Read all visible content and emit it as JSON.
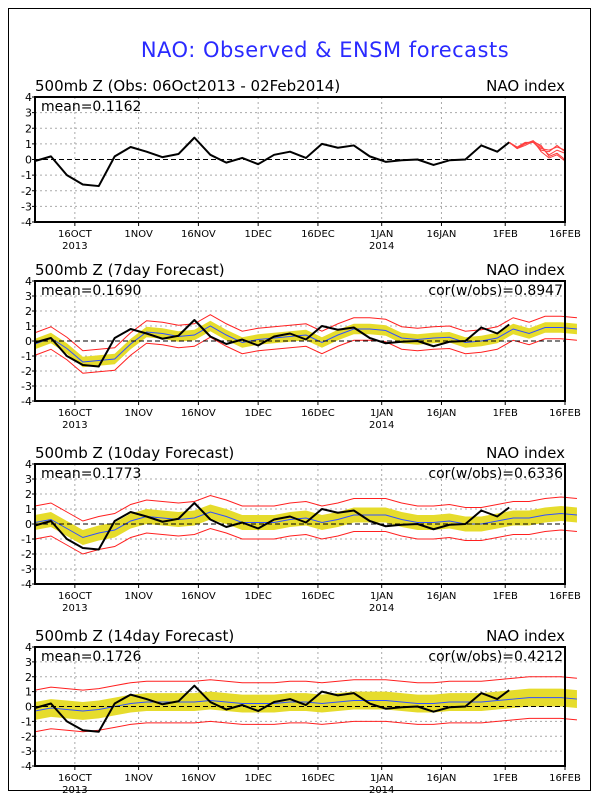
{
  "title": "NAO: Observed & ENSM forecasts",
  "colors": {
    "title": "#2a2aff",
    "observed": "#000000",
    "ensemble_mean": "#3050ff",
    "spread_shade": "#e6dc2c",
    "envelope": "#ff2020",
    "members": "#ff4040"
  },
  "chart_data": [
    {
      "type": "line",
      "title": "500mb Z (Obs: 06Oct2013 - 02Feb2014)",
      "right_title": "NAO index",
      "mean_label": "mean=0.1162",
      "cor_label": "",
      "ylim": [
        -4,
        4
      ],
      "yticks": [
        -4,
        -3,
        -2,
        -1,
        0,
        1,
        2,
        3,
        4
      ],
      "xlim": [
        "2013-10-06",
        "2014-02-16"
      ],
      "xticks": [
        {
          "date": "2013-10-16",
          "label": "16OCT",
          "sub": "2013"
        },
        {
          "date": "2013-11-01",
          "label": "1NOV",
          "sub": ""
        },
        {
          "date": "2013-11-16",
          "label": "16NOV",
          "sub": ""
        },
        {
          "date": "2013-12-01",
          "label": "1DEC",
          "sub": ""
        },
        {
          "date": "2013-12-16",
          "label": "16DEC",
          "sub": ""
        },
        {
          "date": "2014-01-01",
          "label": "1JAN",
          "sub": "2014"
        },
        {
          "date": "2014-01-16",
          "label": "16JAN",
          "sub": ""
        },
        {
          "date": "2014-02-01",
          "label": "1FEB",
          "sub": ""
        },
        {
          "date": "2014-02-16",
          "label": "16FEB",
          "sub": ""
        }
      ],
      "grid": true,
      "series_kind": "observed_with_members",
      "members": {
        "dates": [
          "2014-02-02",
          "2014-02-04",
          "2014-02-06",
          "2014-02-08",
          "2014-02-10",
          "2014-02-12",
          "2014-02-14",
          "2014-02-16"
        ],
        "values": [
          [
            1.1,
            0.7,
            1.0,
            1.2,
            0.8,
            0.3,
            0.6,
            0.4
          ],
          [
            1.1,
            0.8,
            1.1,
            1.1,
            0.6,
            0.5,
            0.9,
            0.5
          ],
          [
            1.1,
            0.7,
            0.9,
            1.15,
            0.9,
            0.2,
            0.4,
            0.0
          ],
          [
            1.1,
            0.75,
            1.05,
            1.1,
            0.7,
            0.6,
            0.8,
            0.6
          ],
          [
            1.1,
            0.7,
            1.0,
            1.2,
            0.5,
            0.1,
            0.3,
            -0.1
          ]
        ]
      }
    },
    {
      "type": "line",
      "title": "500mb Z (7day Forecast)",
      "right_title": "NAO index",
      "mean_label": "mean=0.1690",
      "cor_label": "cor(w/obs)=0.8947",
      "ylim": [
        -4,
        4
      ],
      "series_kind": "forecast",
      "ensemble_mean": [
        -0.2,
        0.2,
        -0.5,
        -1.4,
        -1.3,
        -1.2,
        -0.2,
        0.6,
        0.5,
        0.3,
        0.4,
        1.0,
        0.4,
        -0.1,
        0.1,
        0.2,
        0.3,
        0.4,
        -0.1,
        0.4,
        0.8,
        0.8,
        0.7,
        0.2,
        0.1,
        0.2,
        0.25,
        -0.1,
        0.0,
        0.2,
        0.8,
        0.5,
        0.9,
        0.9,
        0.8
      ],
      "shade_halfwidth": 0.35,
      "envelope_halfwidth": 0.75
    },
    {
      "type": "line",
      "title": "500mb Z (10day Forecast)",
      "right_title": "NAO index",
      "mean_label": "mean=0.1773",
      "cor_label": "cor(w/obs)=0.6336",
      "ylim": [
        -4,
        4
      ],
      "series_kind": "forecast",
      "ensemble_mean": [
        0.1,
        0.3,
        -0.3,
        -0.9,
        -0.6,
        -0.4,
        0.2,
        0.5,
        0.4,
        0.3,
        0.4,
        0.8,
        0.5,
        0.1,
        0.1,
        0.1,
        0.3,
        0.4,
        0.1,
        0.3,
        0.6,
        0.6,
        0.6,
        0.3,
        0.1,
        0.1,
        0.2,
        0.0,
        0.0,
        0.2,
        0.4,
        0.4,
        0.6,
        0.7,
        0.6
      ],
      "shade_halfwidth": 0.5,
      "envelope_halfwidth": 1.1
    },
    {
      "type": "line",
      "title": "500mb Z (14day Forecast)",
      "right_title": "NAO index",
      "mean_label": "mean=0.1726",
      "cor_label": "cor(w/obs)=0.4212",
      "ylim": [
        -4,
        4
      ],
      "series_kind": "forecast",
      "ensemble_mean": [
        -0.3,
        -0.1,
        -0.2,
        -0.3,
        -0.2,
        0.0,
        0.2,
        0.3,
        0.3,
        0.3,
        0.3,
        0.4,
        0.3,
        0.2,
        0.2,
        0.2,
        0.3,
        0.3,
        0.2,
        0.3,
        0.4,
        0.4,
        0.4,
        0.3,
        0.2,
        0.2,
        0.3,
        0.3,
        0.3,
        0.4,
        0.5,
        0.6,
        0.6,
        0.6,
        0.5
      ],
      "shade_halfwidth": 0.6,
      "envelope_halfwidth": 1.4
    }
  ],
  "observed": {
    "dates": [
      "2013-10-06",
      "2013-10-10",
      "2013-10-14",
      "2013-10-18",
      "2013-10-22",
      "2013-10-26",
      "2013-10-30",
      "2013-11-03",
      "2013-11-07",
      "2013-11-11",
      "2013-11-15",
      "2013-11-19",
      "2013-11-23",
      "2013-11-27",
      "2013-12-01",
      "2013-12-05",
      "2013-12-09",
      "2013-12-13",
      "2013-12-17",
      "2013-12-21",
      "2013-12-25",
      "2013-12-29",
      "2014-01-02",
      "2014-01-06",
      "2014-01-10",
      "2014-01-14",
      "2014-01-18",
      "2014-01-22",
      "2014-01-26",
      "2014-01-30",
      "2014-02-02"
    ],
    "values": [
      -0.1,
      0.2,
      -1.0,
      -1.6,
      -1.7,
      0.2,
      0.8,
      0.5,
      0.15,
      0.35,
      1.4,
      0.3,
      -0.2,
      0.1,
      -0.3,
      0.3,
      0.5,
      0.1,
      1.0,
      0.75,
      0.9,
      0.2,
      -0.15,
      -0.05,
      0.0,
      -0.35,
      -0.05,
      0.0,
      0.9,
      0.5,
      1.1
    ]
  }
}
